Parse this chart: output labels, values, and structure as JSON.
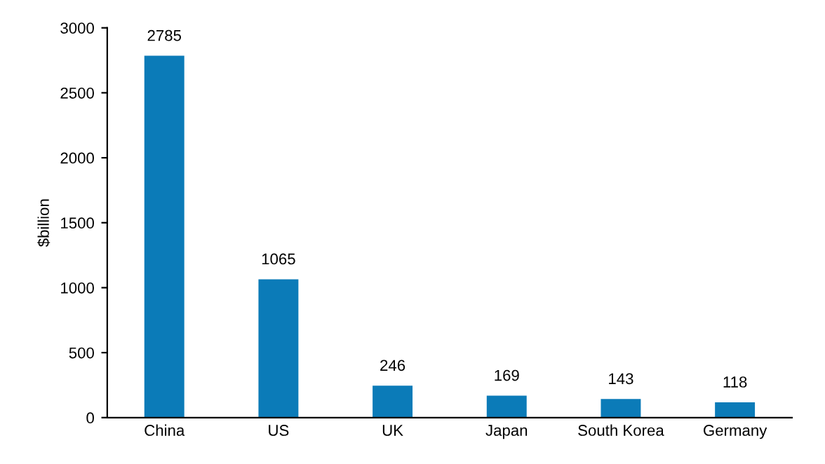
{
  "chart_data": {
    "type": "bar",
    "ylabel": "$billion",
    "categories": [
      "China",
      "US",
      "UK",
      "Japan",
      "South Korea",
      "Germany"
    ],
    "values": [
      2785,
      1065,
      246,
      169,
      143,
      118
    ],
    "color": "#0b7bb8",
    "ylim": [
      0,
      3000
    ],
    "yticks": [
      0,
      500,
      1000,
      1500,
      2000,
      2500,
      3000
    ],
    "data_labels": true,
    "grid": false,
    "legend": false
  }
}
